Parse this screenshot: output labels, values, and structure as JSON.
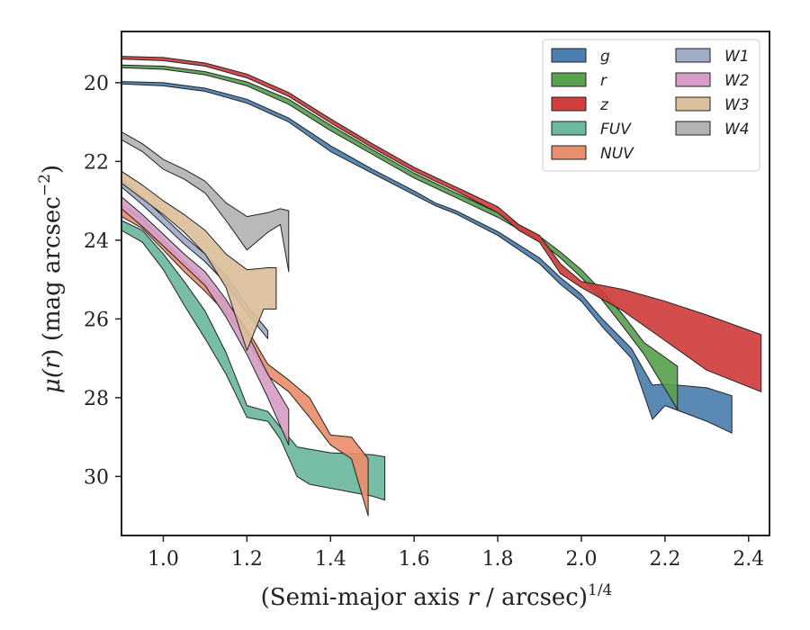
{
  "chart_data": {
    "type": "area",
    "xlabel": "(Semi-major axis r / arcsec)",
    "xlabel_main": "(Semi-major axis ",
    "xlabel_var": "r",
    "xlabel_rest": " / arcsec)",
    "xlabel_sup": "1/4",
    "ylabel_mu": "μ(",
    "ylabel_var": "r",
    "ylabel_close": ")",
    "ylabel_rest": " (mag arcsec",
    "ylabel_sup": "−2",
    "ylabel_end": ")",
    "xlim": [
      0.9,
      2.45
    ],
    "ylim": [
      31.5,
      18.7
    ],
    "y_inverted": true,
    "xticks": [
      "1.0",
      "1.2",
      "1.4",
      "1.6",
      "1.8",
      "2.0",
      "2.2",
      "2.4"
    ],
    "xtick_values": [
      1.0,
      1.2,
      1.4,
      1.6,
      1.8,
      2.0,
      2.2,
      2.4
    ],
    "yticks": [
      "20",
      "22",
      "24",
      "26",
      "28",
      "30"
    ],
    "ytick_values": [
      20,
      22,
      24,
      26,
      28,
      30
    ],
    "grid": false,
    "legend_position": "top-right",
    "legend_columns": 2,
    "series": [
      {
        "name": "g",
        "color": "#4c7fb0",
        "upper": [
          [
            0.9,
            19.97
          ],
          [
            1.0,
            20.0
          ],
          [
            1.1,
            20.14
          ],
          [
            1.2,
            20.42
          ],
          [
            1.3,
            20.9
          ],
          [
            1.4,
            21.6
          ],
          [
            1.5,
            22.2
          ],
          [
            1.6,
            22.75
          ],
          [
            1.65,
            23.05
          ],
          [
            1.7,
            23.25
          ],
          [
            1.8,
            23.78
          ],
          [
            1.9,
            24.45
          ],
          [
            1.95,
            24.95
          ],
          [
            2.0,
            25.38
          ],
          [
            2.05,
            26.0
          ],
          [
            2.12,
            26.75
          ],
          [
            2.17,
            27.68
          ],
          [
            2.2,
            27.65
          ],
          [
            2.3,
            27.75
          ],
          [
            2.36,
            27.95
          ]
        ],
        "lower": [
          [
            0.9,
            20.03
          ],
          [
            1.0,
            20.08
          ],
          [
            1.1,
            20.22
          ],
          [
            1.2,
            20.52
          ],
          [
            1.3,
            21.0
          ],
          [
            1.4,
            21.75
          ],
          [
            1.5,
            22.3
          ],
          [
            1.6,
            22.85
          ],
          [
            1.65,
            23.12
          ],
          [
            1.7,
            23.33
          ],
          [
            1.8,
            23.88
          ],
          [
            1.9,
            24.6
          ],
          [
            1.95,
            25.12
          ],
          [
            2.0,
            25.55
          ],
          [
            2.05,
            26.2
          ],
          [
            2.12,
            27.0
          ],
          [
            2.17,
            28.55
          ],
          [
            2.2,
            28.2
          ],
          [
            2.3,
            28.6
          ],
          [
            2.36,
            28.9
          ]
        ]
      },
      {
        "name": "r",
        "color": "#59a14f",
        "upper": [
          [
            0.9,
            19.55
          ],
          [
            1.0,
            19.58
          ],
          [
            1.1,
            19.72
          ],
          [
            1.2,
            19.98
          ],
          [
            1.3,
            20.42
          ],
          [
            1.4,
            21.08
          ],
          [
            1.5,
            21.7
          ],
          [
            1.6,
            22.3
          ],
          [
            1.7,
            22.8
          ],
          [
            1.8,
            23.3
          ],
          [
            1.9,
            23.9
          ],
          [
            1.95,
            24.3
          ],
          [
            2.0,
            24.75
          ],
          [
            2.05,
            25.3
          ],
          [
            2.1,
            25.9
          ],
          [
            2.15,
            26.6
          ],
          [
            2.23,
            27.2
          ]
        ],
        "lower": [
          [
            0.9,
            19.62
          ],
          [
            1.0,
            19.66
          ],
          [
            1.1,
            19.8
          ],
          [
            1.2,
            20.08
          ],
          [
            1.3,
            20.55
          ],
          [
            1.4,
            21.22
          ],
          [
            1.5,
            21.82
          ],
          [
            1.6,
            22.42
          ],
          [
            1.7,
            22.92
          ],
          [
            1.8,
            23.42
          ],
          [
            1.9,
            24.02
          ],
          [
            1.95,
            24.45
          ],
          [
            2.0,
            24.95
          ],
          [
            2.05,
            25.52
          ],
          [
            2.1,
            26.2
          ],
          [
            2.15,
            26.9
          ],
          [
            2.23,
            28.3
          ]
        ]
      },
      {
        "name": "z",
        "color": "#d03e3e",
        "upper": [
          [
            0.9,
            19.33
          ],
          [
            1.0,
            19.36
          ],
          [
            1.1,
            19.5
          ],
          [
            1.2,
            19.78
          ],
          [
            1.3,
            20.25
          ],
          [
            1.4,
            20.92
          ],
          [
            1.5,
            21.55
          ],
          [
            1.6,
            22.15
          ],
          [
            1.7,
            22.65
          ],
          [
            1.8,
            23.15
          ],
          [
            1.85,
            23.6
          ],
          [
            1.9,
            23.88
          ],
          [
            1.95,
            24.6
          ],
          [
            2.0,
            25.05
          ],
          [
            2.1,
            25.25
          ],
          [
            2.2,
            25.55
          ],
          [
            2.3,
            25.9
          ],
          [
            2.43,
            26.4
          ]
        ],
        "lower": [
          [
            0.9,
            19.4
          ],
          [
            1.0,
            19.44
          ],
          [
            1.1,
            19.58
          ],
          [
            1.2,
            19.88
          ],
          [
            1.3,
            20.35
          ],
          [
            1.4,
            21.02
          ],
          [
            1.5,
            21.65
          ],
          [
            1.6,
            22.25
          ],
          [
            1.7,
            22.75
          ],
          [
            1.8,
            23.3
          ],
          [
            1.85,
            23.75
          ],
          [
            1.9,
            24.05
          ],
          [
            1.95,
            24.85
          ],
          [
            2.0,
            25.2
          ],
          [
            2.1,
            25.8
          ],
          [
            2.2,
            26.55
          ],
          [
            2.3,
            27.3
          ],
          [
            2.43,
            27.85
          ]
        ]
      },
      {
        "name": "FUV",
        "color": "#6cb9a0",
        "upper": [
          [
            0.9,
            23.5
          ],
          [
            0.95,
            23.75
          ],
          [
            1.0,
            24.35
          ],
          [
            1.05,
            25.05
          ],
          [
            1.1,
            25.8
          ],
          [
            1.15,
            26.85
          ],
          [
            1.2,
            28.2
          ],
          [
            1.25,
            28.35
          ],
          [
            1.28,
            28.75
          ],
          [
            1.32,
            29.25
          ],
          [
            1.4,
            29.4
          ],
          [
            1.5,
            29.45
          ],
          [
            1.53,
            29.5
          ]
        ],
        "lower": [
          [
            0.9,
            23.75
          ],
          [
            0.95,
            24.05
          ],
          [
            1.0,
            24.75
          ],
          [
            1.05,
            25.65
          ],
          [
            1.1,
            26.5
          ],
          [
            1.15,
            27.4
          ],
          [
            1.2,
            28.5
          ],
          [
            1.25,
            28.6
          ],
          [
            1.28,
            29.05
          ],
          [
            1.32,
            30.0
          ],
          [
            1.35,
            30.2
          ],
          [
            1.4,
            30.3
          ],
          [
            1.5,
            30.5
          ],
          [
            1.53,
            30.6
          ]
        ]
      },
      {
        "name": "NUV",
        "color": "#e98e6c",
        "upper": [
          [
            0.9,
            23.1
          ],
          [
            0.95,
            23.45
          ],
          [
            1.0,
            24.0
          ],
          [
            1.05,
            24.55
          ],
          [
            1.1,
            25.05
          ],
          [
            1.15,
            25.55
          ],
          [
            1.2,
            26.25
          ],
          [
            1.25,
            27.15
          ],
          [
            1.3,
            27.55
          ],
          [
            1.35,
            28.0
          ],
          [
            1.4,
            28.95
          ],
          [
            1.45,
            29.0
          ],
          [
            1.49,
            29.55
          ]
        ],
        "lower": [
          [
            0.9,
            23.4
          ],
          [
            0.95,
            23.7
          ],
          [
            1.0,
            24.25
          ],
          [
            1.05,
            24.8
          ],
          [
            1.1,
            25.3
          ],
          [
            1.15,
            25.85
          ],
          [
            1.2,
            26.55
          ],
          [
            1.25,
            27.45
          ],
          [
            1.3,
            27.85
          ],
          [
            1.35,
            28.5
          ],
          [
            1.4,
            29.2
          ],
          [
            1.45,
            29.55
          ],
          [
            1.49,
            31.0
          ]
        ]
      },
      {
        "name": "W1",
        "color": "#a0acc8",
        "upper": [
          [
            0.9,
            22.45
          ],
          [
            0.95,
            22.9
          ],
          [
            1.0,
            23.4
          ],
          [
            1.05,
            23.9
          ],
          [
            1.1,
            24.35
          ],
          [
            1.15,
            24.9
          ],
          [
            1.2,
            25.65
          ],
          [
            1.25,
            26.3
          ]
        ],
        "lower": [
          [
            0.9,
            22.65
          ],
          [
            0.95,
            23.1
          ],
          [
            1.0,
            23.6
          ],
          [
            1.05,
            24.1
          ],
          [
            1.1,
            24.55
          ],
          [
            1.15,
            25.1
          ],
          [
            1.2,
            25.85
          ],
          [
            1.25,
            26.5
          ]
        ]
      },
      {
        "name": "W2",
        "color": "#d69ec6",
        "upper": [
          [
            0.9,
            22.9
          ],
          [
            0.95,
            23.35
          ],
          [
            1.0,
            23.85
          ],
          [
            1.05,
            24.35
          ],
          [
            1.1,
            24.8
          ],
          [
            1.15,
            25.5
          ],
          [
            1.2,
            26.35
          ],
          [
            1.25,
            27.4
          ],
          [
            1.3,
            28.3
          ]
        ],
        "lower": [
          [
            0.9,
            23.2
          ],
          [
            0.95,
            23.65
          ],
          [
            1.0,
            24.15
          ],
          [
            1.05,
            24.65
          ],
          [
            1.1,
            25.15
          ],
          [
            1.15,
            25.95
          ],
          [
            1.2,
            26.9
          ],
          [
            1.25,
            28.0
          ],
          [
            1.3,
            29.2
          ]
        ]
      },
      {
        "name": "W3",
        "color": "#dcbf9c",
        "upper": [
          [
            0.9,
            22.25
          ],
          [
            0.95,
            22.6
          ],
          [
            1.0,
            23.0
          ],
          [
            1.05,
            23.35
          ],
          [
            1.1,
            23.75
          ],
          [
            1.15,
            24.35
          ],
          [
            1.2,
            24.75
          ],
          [
            1.25,
            24.7
          ],
          [
            1.27,
            24.7
          ]
        ],
        "lower": [
          [
            0.9,
            22.55
          ],
          [
            0.95,
            22.95
          ],
          [
            1.0,
            23.35
          ],
          [
            1.05,
            23.8
          ],
          [
            1.1,
            24.35
          ],
          [
            1.15,
            25.2
          ],
          [
            1.2,
            26.8
          ],
          [
            1.24,
            25.75
          ],
          [
            1.27,
            25.75
          ]
        ]
      },
      {
        "name": "W4",
        "color": "#b3b3b3",
        "upper": [
          [
            0.9,
            21.25
          ],
          [
            0.95,
            21.55
          ],
          [
            1.0,
            21.95
          ],
          [
            1.05,
            22.2
          ],
          [
            1.1,
            22.5
          ],
          [
            1.15,
            23.05
          ],
          [
            1.2,
            23.4
          ],
          [
            1.25,
            23.3
          ],
          [
            1.28,
            23.2
          ],
          [
            1.3,
            23.25
          ]
        ],
        "lower": [
          [
            0.9,
            21.45
          ],
          [
            0.95,
            21.75
          ],
          [
            1.0,
            22.2
          ],
          [
            1.05,
            22.45
          ],
          [
            1.1,
            22.8
          ],
          [
            1.15,
            23.5
          ],
          [
            1.2,
            24.25
          ],
          [
            1.25,
            23.8
          ],
          [
            1.28,
            23.6
          ],
          [
            1.3,
            24.8
          ]
        ]
      }
    ]
  }
}
